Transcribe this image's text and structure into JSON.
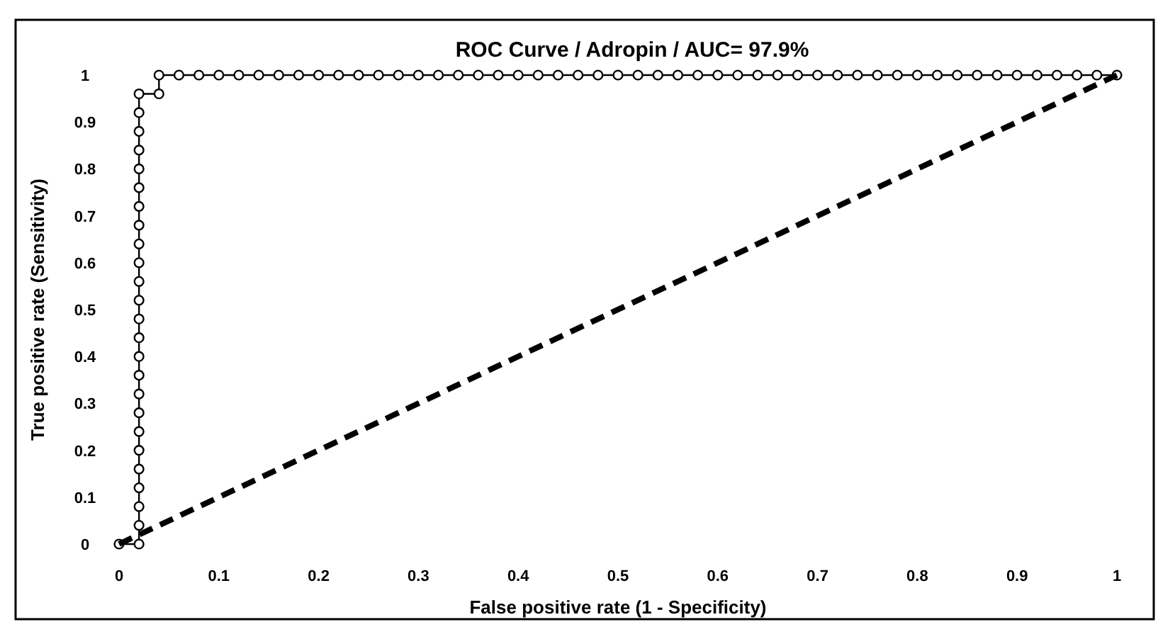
{
  "chart_data": {
    "type": "line",
    "title": "ROC Curve / Adropin / AUC= 97.9%",
    "xlabel": "False positive rate (1 - Specificity)",
    "ylabel": "True positive rate (Sensitivity)",
    "xlim": [
      0,
      1
    ],
    "ylim": [
      0,
      1
    ],
    "xticks": [
      0,
      0.1,
      0.2,
      0.3,
      0.4,
      0.5,
      0.6,
      0.7,
      0.8,
      0.9,
      1
    ],
    "yticks": [
      0,
      0.1,
      0.2,
      0.3,
      0.4,
      0.5,
      0.6,
      0.7,
      0.8,
      0.9,
      1
    ],
    "grid": false,
    "series": [
      {
        "color": "#000000",
        "marker": "circle",
        "line_style": "solid",
        "x": [
          0,
          0.02,
          0.02,
          0.02,
          0.02,
          0.02,
          0.02,
          0.02,
          0.02,
          0.02,
          0.02,
          0.02,
          0.02,
          0.02,
          0.02,
          0.02,
          0.02,
          0.02,
          0.02,
          0.02,
          0.02,
          0.02,
          0.02,
          0.02,
          0.02,
          0.02,
          0.04,
          0.04,
          0.06,
          0.08,
          0.1,
          0.12,
          0.14,
          0.16,
          0.18,
          0.2,
          0.22,
          0.24,
          0.26,
          0.28,
          0.3,
          0.32,
          0.34,
          0.36,
          0.38,
          0.4,
          0.42,
          0.44,
          0.46,
          0.48,
          0.5,
          0.52,
          0.54,
          0.56,
          0.58,
          0.6,
          0.62,
          0.64,
          0.66,
          0.68,
          0.7,
          0.72,
          0.74,
          0.76,
          0.78,
          0.8,
          0.82,
          0.84,
          0.86,
          0.88,
          0.9,
          0.92,
          0.94,
          0.96,
          0.98,
          1
        ],
        "values": [
          0,
          0,
          0.04,
          0.08,
          0.12,
          0.16,
          0.2,
          0.24,
          0.28,
          0.32,
          0.36,
          0.4,
          0.44,
          0.48,
          0.52,
          0.56,
          0.6,
          0.64,
          0.68,
          0.72,
          0.76,
          0.8,
          0.84,
          0.88,
          0.92,
          0.96,
          0.96,
          1,
          1,
          1,
          1,
          1,
          1,
          1,
          1,
          1,
          1,
          1,
          1,
          1,
          1,
          1,
          1,
          1,
          1,
          1,
          1,
          1,
          1,
          1,
          1,
          1,
          1,
          1,
          1,
          1,
          1,
          1,
          1,
          1,
          1,
          1,
          1,
          1,
          1,
          1,
          1,
          1,
          1,
          1,
          1,
          1,
          1,
          1,
          1,
          1
        ]
      },
      {
        "color": "#000000",
        "marker": "none",
        "line_style": "dashed",
        "x": [
          0,
          1
        ],
        "values": [
          0,
          1
        ]
      }
    ]
  }
}
